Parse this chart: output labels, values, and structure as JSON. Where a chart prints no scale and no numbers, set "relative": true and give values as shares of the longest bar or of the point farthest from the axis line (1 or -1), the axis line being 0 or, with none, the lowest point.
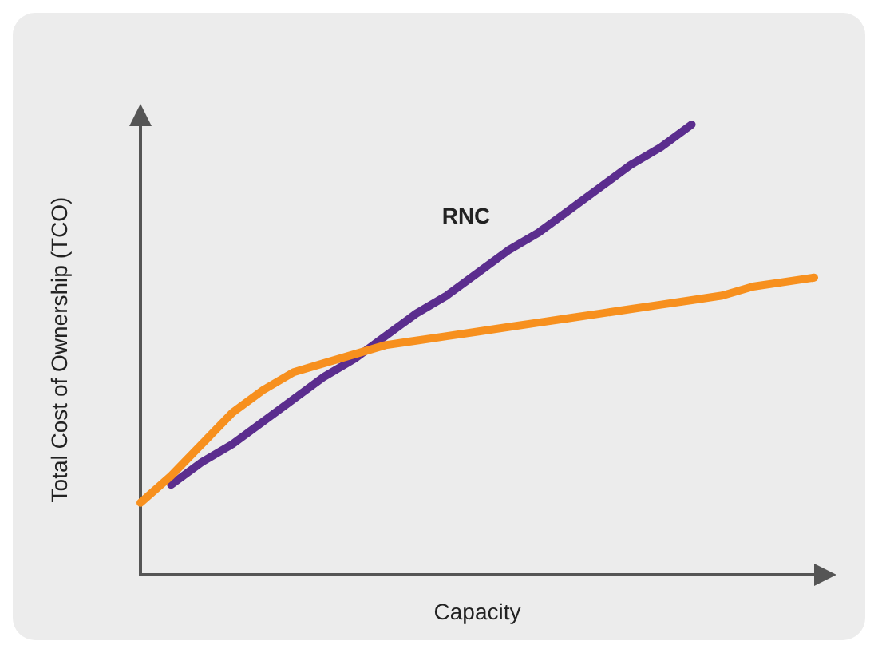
{
  "chart_data": {
    "type": "line",
    "relative": true,
    "xlabel": "Capacity",
    "ylabel": "Total Cost of Ownership (TCO)",
    "categories": [
      null,
      null,
      null,
      null,
      null,
      null,
      null,
      null,
      null,
      null,
      null,
      null,
      null,
      null,
      null,
      null,
      null,
      null,
      null,
      null,
      null,
      null,
      null
    ],
    "series": [
      {
        "name": "RNC",
        "color": "#5b2d8e",
        "values": [
          null,
          0.2,
          0.25,
          0.29,
          0.34,
          0.39,
          0.44,
          0.48,
          0.53,
          0.58,
          0.62,
          0.67,
          0.72,
          0.76,
          0.81,
          0.86,
          0.91,
          0.95,
          1,
          null,
          null,
          null,
          null
        ]
      },
      {
        "color": "#f7901e",
        "values": [
          0.16,
          0.22,
          0.29,
          0.36,
          0.41,
          0.45,
          0.47,
          0.49,
          0.51,
          0.52,
          0.53,
          0.54,
          0.55,
          0.56,
          0.57,
          0.58,
          0.59,
          0.6,
          0.61,
          0.62,
          0.64,
          0.65,
          0.66
        ]
      }
    ],
    "marker": "none",
    "line_style": "solid",
    "grid": false,
    "legend": false
  }
}
